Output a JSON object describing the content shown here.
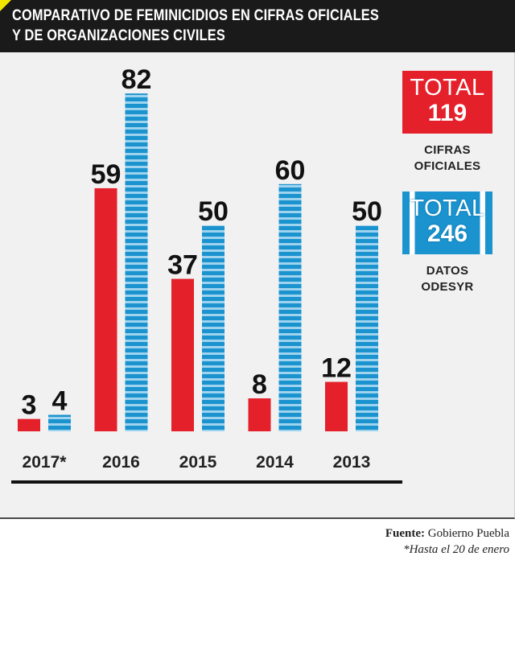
{
  "header": {
    "title_line1": "COMPARATIVO DE FEMINICIDIOS EN CIFRAS OFICIALES",
    "title_line2": "Y DE ORGANIZACIONES CIVILES"
  },
  "colors": {
    "oficial": "#e4202b",
    "odesyr": "#1a93cf",
    "header_bg": "#1a1a1a",
    "accent_corner": "#f2e600"
  },
  "chart_data": {
    "type": "bar",
    "categories": [
      "2017*",
      "2016",
      "2015",
      "2014",
      "2013"
    ],
    "series": [
      {
        "name": "CIFRAS OFICIALES",
        "values": [
          3,
          59,
          37,
          8,
          12
        ]
      },
      {
        "name": "DATOS ODESYR",
        "values": [
          4,
          82,
          50,
          60,
          50
        ]
      }
    ],
    "ylim": [
      0,
      82
    ],
    "grid": false
  },
  "totals": {
    "oficial": {
      "keyword": "TOTAL",
      "value": "119",
      "label_line1": "CIFRAS",
      "label_line2": "OFICIALES"
    },
    "odesyr": {
      "keyword": "TOTAL",
      "value": "246",
      "label_line1": "DATOS",
      "label_line2": "ODESYR"
    }
  },
  "source": {
    "label": "Fuente:",
    "value": "Gobierno Puebla",
    "footnote": "*Hasta el 20 de enero"
  }
}
